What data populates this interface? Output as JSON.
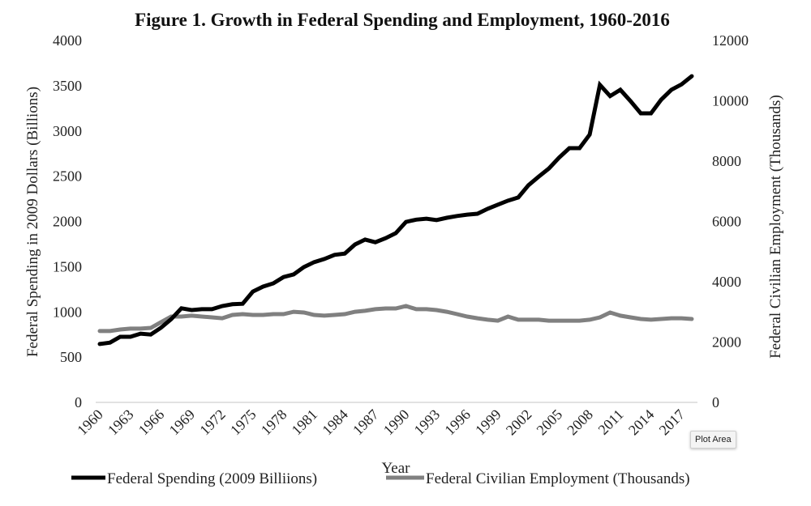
{
  "chart_data": {
    "type": "line",
    "title": "Figure 1. Growth in Federal Spending and Employment, 1960-2016",
    "xlabel": "Year",
    "ylabel": "Federal Spending in 2009 Dollars (Billions)",
    "ylabel_right": "Federal Civilian Employment (Thousands)",
    "x": [
      1960,
      1961,
      1962,
      1963,
      1964,
      1965,
      1966,
      1967,
      1968,
      1969,
      1970,
      1971,
      1972,
      1973,
      1974,
      1975,
      1976,
      1977,
      1978,
      1979,
      1980,
      1981,
      1982,
      1983,
      1984,
      1985,
      1986,
      1987,
      1988,
      1989,
      1990,
      1991,
      1992,
      1993,
      1994,
      1995,
      1996,
      1997,
      1998,
      1999,
      2000,
      2001,
      2002,
      2003,
      2004,
      2005,
      2006,
      2007,
      2008,
      2009,
      2010,
      2011,
      2012,
      2013,
      2014,
      2015,
      2016,
      2017,
      2018
    ],
    "x_tick_labels": [
      "1960",
      "1963",
      "1966",
      "1969",
      "1972",
      "1975",
      "1978",
      "1981",
      "1984",
      "1987",
      "1990",
      "1993",
      "1996",
      "1999",
      "2002",
      "2005",
      "2008",
      "2011",
      "2014",
      "2017"
    ],
    "ylim": [
      0,
      4000
    ],
    "y_ticks": [
      "0",
      "500",
      "1000",
      "1500",
      "2000",
      "2500",
      "3000",
      "3500",
      "4000"
    ],
    "ylim_right": [
      0,
      12000
    ],
    "y_ticks_right": [
      "0",
      "2000",
      "4000",
      "6000",
      "8000",
      "10000",
      "12000"
    ],
    "grid": false,
    "legend_position": "bottom",
    "series": [
      {
        "name": "Federal Spending (2009 Billiions)",
        "axis": "left",
        "color": "#000000",
        "values": [
          645,
          660,
          725,
          725,
          760,
          750,
          825,
          920,
          1040,
          1020,
          1030,
          1030,
          1065,
          1085,
          1090,
          1225,
          1280,
          1315,
          1385,
          1415,
          1495,
          1550,
          1585,
          1630,
          1645,
          1745,
          1800,
          1770,
          1815,
          1870,
          1995,
          2020,
          2030,
          2015,
          2040,
          2060,
          2075,
          2085,
          2140,
          2185,
          2230,
          2265,
          2400,
          2495,
          2585,
          2705,
          2810,
          2810,
          2960,
          3510,
          3385,
          3455,
          3330,
          3195,
          3195,
          3345,
          3455,
          3515,
          3605
        ]
      },
      {
        "name": "Federal Civilian Employment (Thousands)",
        "axis": "right",
        "color": "#808080",
        "values": [
          2365,
          2365,
          2415,
          2445,
          2445,
          2470,
          2660,
          2845,
          2845,
          2875,
          2845,
          2820,
          2790,
          2900,
          2925,
          2900,
          2900,
          2925,
          2925,
          3005,
          2980,
          2900,
          2875,
          2900,
          2925,
          3005,
          3035,
          3090,
          3115,
          3115,
          3195,
          3090,
          3090,
          3060,
          3005,
          2925,
          2845,
          2790,
          2740,
          2710,
          2845,
          2740,
          2740,
          2740,
          2710,
          2710,
          2710,
          2710,
          2740,
          2820,
          2980,
          2875,
          2820,
          2765,
          2740,
          2765,
          2790,
          2790,
          2765
        ]
      }
    ]
  },
  "legend": {
    "items": [
      {
        "label": "Federal Spending (2009 Billiions)",
        "color": "#000000"
      },
      {
        "label": "Federal Civilian Employment (Thousands)",
        "color": "#808080"
      }
    ]
  },
  "tooltip": {
    "text": "Plot Area"
  }
}
